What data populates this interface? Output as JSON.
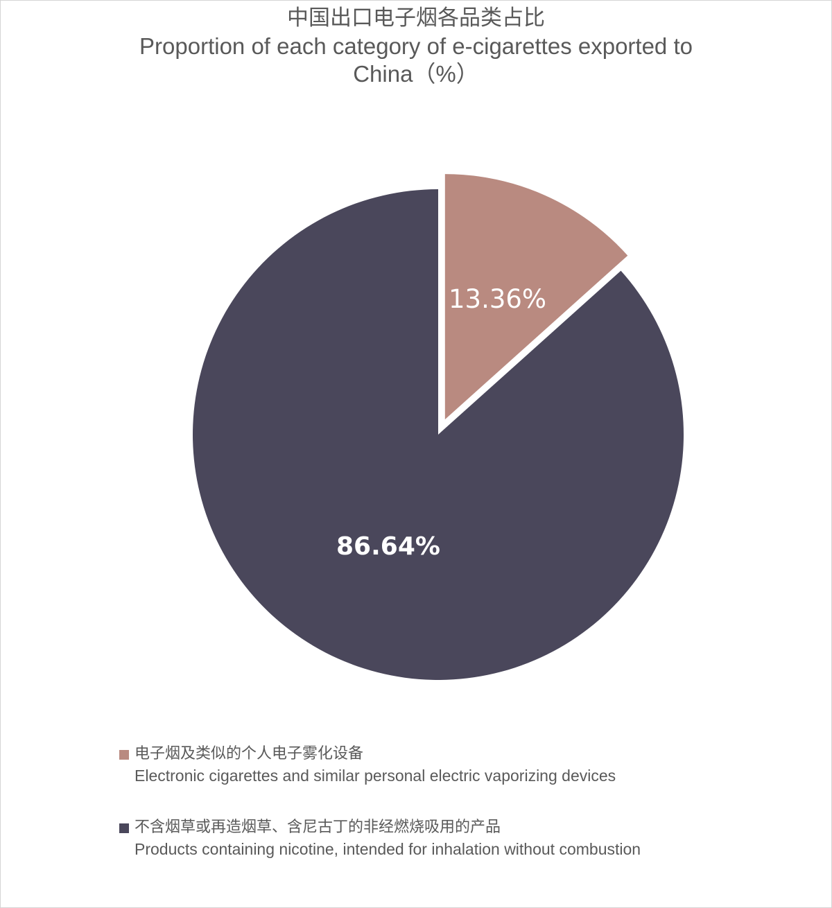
{
  "title": {
    "cn": "中国出口电子烟各品类占比",
    "en_line1": "Proportion of each category of e-cigarettes exported to",
    "en_line2": "China（%）"
  },
  "colors": {
    "slice_1": "#b98a80",
    "slice_2": "#4a475b",
    "background": "#ffffff",
    "text": "#595959"
  },
  "labels": {
    "slice_1": "13.36%",
    "slice_2": "86.64%"
  },
  "legend": [
    {
      "cn": "电子烟及类似的个人电子雾化设备",
      "en": "Electronic cigarettes and similar personal electric vaporizing devices",
      "color": "#b98a80"
    },
    {
      "cn": "不含烟草或再造烟草、含尼古丁的非经燃烧吸用的产品",
      "en": "Products containing nicotine, intended for inhalation without combustion",
      "color": "#4a475b"
    }
  ],
  "chart_data": {
    "type": "pie",
    "title": "中国出口电子烟各品类占比 / Proportion of each category of e-cigarettes exported to China（%）",
    "categories": [
      "电子烟及类似的个人电子雾化设备 / Electronic cigarettes and similar personal electric vaporizing devices",
      "不含烟草或再造烟草、含尼古丁的非经燃烧吸用的产品 / Products containing nicotine, intended for inhalation without combustion"
    ],
    "values": [
      13.36,
      86.64
    ],
    "unit": "%",
    "colors": [
      "#b98a80",
      "#4a475b"
    ],
    "exploded": [
      true,
      false
    ],
    "start_angle": "12 o'clock, clockwise",
    "data_labels": [
      "13.36%",
      "86.64%"
    ],
    "legend_position": "bottom"
  }
}
